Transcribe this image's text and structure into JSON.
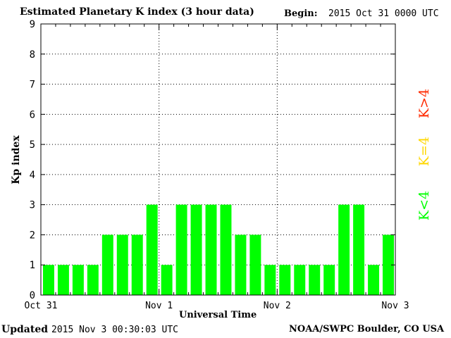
{
  "header": {
    "title": "Estimated Planetary K index (3 hour data)",
    "begin_label": "Begin:",
    "begin_value": "2015 Oct 31 0000 UTC"
  },
  "footer": {
    "updated_label": "Updated",
    "updated_value": "2015 Nov  3 00:30:03 UTC",
    "credit": "NOAA/SWPC Boulder, CO USA"
  },
  "chart_data": {
    "type": "bar",
    "title": "Estimated Planetary K index (3 hour data)",
    "xlabel": "Universal Time",
    "ylabel": "Kp index",
    "ylim": [
      0,
      9
    ],
    "y_ticks": [
      "0",
      "1",
      "2",
      "3",
      "4",
      "5",
      "6",
      "7",
      "8",
      "9"
    ],
    "x_tick_labels": [
      "Oct 31",
      "Nov 1",
      "Nov 2",
      "Nov 3"
    ],
    "grid": true,
    "values": [
      1,
      1,
      1,
      1,
      2,
      2,
      2,
      3,
      1,
      3,
      3,
      3,
      3,
      2,
      2,
      1,
      1,
      1,
      1,
      1,
      3,
      3,
      1,
      2
    ],
    "bar_color": "#00ff00",
    "legend": [
      {
        "label": "K<4",
        "color": "#00ff00"
      },
      {
        "label": "K=4",
        "color": "#ffd700"
      },
      {
        "label": "K>4",
        "color": "#ff2a00"
      }
    ],
    "legend_placement": "right"
  }
}
